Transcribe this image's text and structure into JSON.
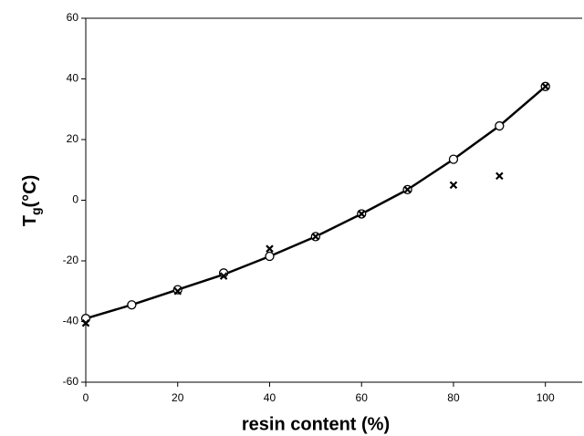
{
  "chart_data": {
    "type": "scatter",
    "xlabel": "resin content (%)",
    "ylabel": {
      "main": "T",
      "sub": "g",
      "unit": "(°C)"
    },
    "xlim": [
      0,
      108
    ],
    "xticks": [
      0,
      20,
      40,
      60,
      80,
      100
    ],
    "ylim": [
      -60,
      60
    ],
    "yticks": [
      -60,
      -40,
      -20,
      0,
      20,
      40,
      60
    ],
    "series": [
      {
        "marker": "none",
        "line": true,
        "color": "#000000",
        "x": [
          0,
          10,
          20,
          30,
          40,
          50,
          60,
          70,
          80,
          90,
          100
        ],
        "values": [
          -39,
          -34.5,
          -29.5,
          -24.5,
          -18.5,
          -12,
          -4.5,
          3.5,
          13.5,
          24.5,
          37.5
        ]
      },
      {
        "marker": "circle",
        "line": false,
        "color": "#000000",
        "x": [
          0,
          10,
          20,
          30,
          40,
          50,
          60,
          70,
          80,
          90,
          100
        ],
        "values": [
          -39,
          -34.5,
          -29.5,
          -24,
          -18.5,
          -12,
          -4.5,
          3.5,
          13.5,
          24.5,
          37.5
        ]
      },
      {
        "marker": "x",
        "line": false,
        "color": "#000000",
        "x": [
          0,
          20,
          30,
          40,
          50,
          60,
          70,
          80,
          90,
          100
        ],
        "values": [
          -40.5,
          -30,
          -25,
          -16,
          -12,
          -4.5,
          3.5,
          5,
          8,
          37.5
        ]
      }
    ]
  }
}
